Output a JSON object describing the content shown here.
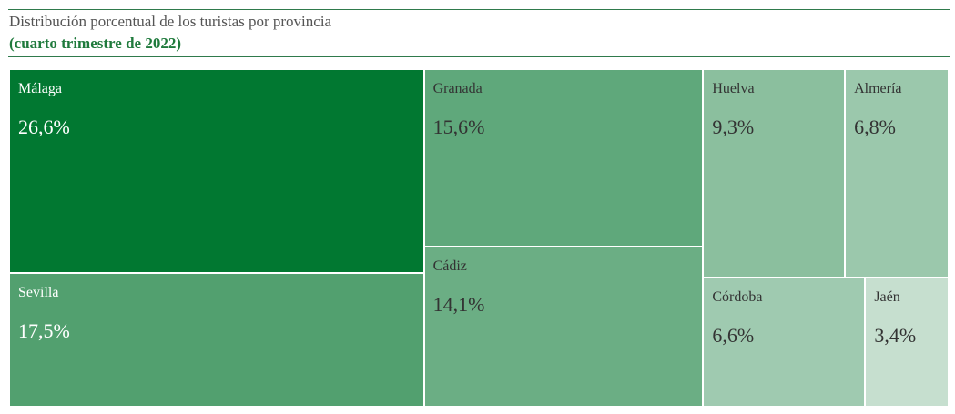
{
  "header": {
    "title": "Distribución porcentual de los turistas por provincia",
    "subtitle": "(cuarto trimestre de 2022)"
  },
  "colors": {
    "rule": "#2f7a4c",
    "subtitle": "#1f7a3c"
  },
  "chart_data": {
    "type": "treemap",
    "title": "Distribución porcentual de los turistas por provincia",
    "subtitle": "(cuarto trimestre de 2022)",
    "unit": "%",
    "items": [
      {
        "name": "Málaga",
        "value": 26.6,
        "label": "26,6%",
        "color": "#017831",
        "text_color": "#ffffff"
      },
      {
        "name": "Sevilla",
        "value": 17.5,
        "label": "17,5%",
        "color": "#52a06f",
        "text_color": "#ffffff"
      },
      {
        "name": "Granada",
        "value": 15.6,
        "label": "15,6%",
        "color": "#5fa87b",
        "text_color": "#333333"
      },
      {
        "name": "Cádiz",
        "value": 14.1,
        "label": "14,1%",
        "color": "#6bae84",
        "text_color": "#333333"
      },
      {
        "name": "Huelva",
        "value": 9.3,
        "label": "9,3%",
        "color": "#8bbf9e",
        "text_color": "#333333"
      },
      {
        "name": "Almería",
        "value": 6.8,
        "label": "6,8%",
        "color": "#9bc8ac",
        "text_color": "#333333"
      },
      {
        "name": "Córdoba",
        "value": 6.6,
        "label": "6,6%",
        "color": "#9fcab0",
        "text_color": "#333333"
      },
      {
        "name": "Jaén",
        "value": 3.4,
        "label": "3,4%",
        "color": "#c6dfcf",
        "text_color": "#333333"
      }
    ]
  }
}
